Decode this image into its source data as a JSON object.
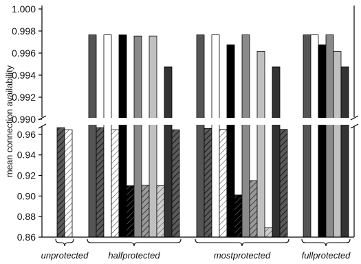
{
  "chart_data": {
    "type": "bar",
    "ylabel": "mean connection availability",
    "axis_break": {
      "upper": {
        "ylim": [
          0.99,
          1.0
        ],
        "ticks": [
          "0.990",
          "0.992",
          "0.994",
          "0.996",
          "0.998",
          "1.000"
        ]
      },
      "lower": {
        "ylim": [
          0.86,
          0.97
        ],
        "ticks": [
          "0.86",
          "0.88",
          "0.90",
          "0.92",
          "0.94",
          "0.96"
        ]
      }
    },
    "groups": [
      {
        "label": "unprotected",
        "bars": [
          {
            "value": 0.9665,
            "color": "#555555",
            "pattern": "hatch-dark"
          },
          {
            "value": 0.9645,
            "color": "#ffffff",
            "pattern": "hatch-light"
          }
        ]
      },
      {
        "label": "halfprotected",
        "bars": [
          {
            "value": 0.99765,
            "color": "#555555",
            "pattern": "none"
          },
          {
            "value": 0.9665,
            "color": "#555555",
            "pattern": "hatch-dark"
          },
          {
            "value": 0.99765,
            "color": "#ffffff",
            "pattern": "none"
          },
          {
            "value": 0.9645,
            "color": "#ffffff",
            "pattern": "hatch-light"
          },
          {
            "value": 0.99765,
            "color": "#000000",
            "pattern": "none"
          },
          {
            "value": 0.91,
            "color": "#000000",
            "pattern": "hatch-black"
          },
          {
            "value": 0.99755,
            "color": "#8a8a8a",
            "pattern": "none"
          },
          {
            "value": 0.9105,
            "color": "#8a8a8a",
            "pattern": "hatch-gray"
          },
          {
            "value": 0.99755,
            "color": "#c0c0c0",
            "pattern": "none"
          },
          {
            "value": 0.91,
            "color": "#c0c0c0",
            "pattern": "hatch-lightgray"
          },
          {
            "value": 0.99475,
            "color": "#333333",
            "pattern": "none"
          },
          {
            "value": 0.9645,
            "color": "#333333",
            "pattern": "hatch-dark"
          }
        ]
      },
      {
        "label": "mostprotected",
        "bars": [
          {
            "value": 0.99765,
            "color": "#555555",
            "pattern": "none"
          },
          {
            "value": 0.9658,
            "color": "#555555",
            "pattern": "hatch-dark"
          },
          {
            "value": 0.99765,
            "color": "#ffffff",
            "pattern": "none"
          },
          {
            "value": 0.9648,
            "color": "#ffffff",
            "pattern": "hatch-light"
          },
          {
            "value": 0.99675,
            "color": "#000000",
            "pattern": "none"
          },
          {
            "value": 0.901,
            "color": "#000000",
            "pattern": "hatch-black"
          },
          {
            "value": 0.99765,
            "color": "#8a8a8a",
            "pattern": "none"
          },
          {
            "value": 0.915,
            "color": "#8a8a8a",
            "pattern": "hatch-gray"
          },
          {
            "value": 0.99615,
            "color": "#c0c0c0",
            "pattern": "none"
          },
          {
            "value": 0.869,
            "color": "#c0c0c0",
            "pattern": "hatch-lightgray"
          },
          {
            "value": 0.99475,
            "color": "#333333",
            "pattern": "none"
          },
          {
            "value": 0.9648,
            "color": "#333333",
            "pattern": "hatch-dark"
          }
        ]
      },
      {
        "label": "fullprotected",
        "bars": [
          {
            "value": 0.99765,
            "color": "#555555",
            "pattern": "none"
          },
          {
            "value": 0.99765,
            "color": "#ffffff",
            "pattern": "none"
          },
          {
            "value": 0.99675,
            "color": "#000000",
            "pattern": "none"
          },
          {
            "value": 0.99765,
            "color": "#8a8a8a",
            "pattern": "none"
          },
          {
            "value": 0.99615,
            "color": "#c0c0c0",
            "pattern": "none"
          },
          {
            "value": 0.99475,
            "color": "#333333",
            "pattern": "none"
          }
        ]
      }
    ]
  }
}
